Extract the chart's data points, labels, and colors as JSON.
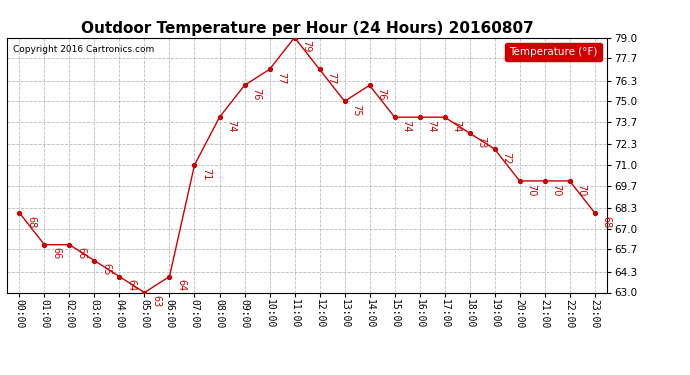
{
  "title": "Outdoor Temperature per Hour (24 Hours) 20160807",
  "copyright": "Copyright 2016 Cartronics.com",
  "legend_label": "Temperature (°F)",
  "hours": [
    "00:00",
    "01:00",
    "02:00",
    "03:00",
    "04:00",
    "05:00",
    "06:00",
    "07:00",
    "08:00",
    "09:00",
    "10:00",
    "11:00",
    "12:00",
    "13:00",
    "14:00",
    "15:00",
    "16:00",
    "17:00",
    "18:00",
    "19:00",
    "20:00",
    "21:00",
    "22:00",
    "23:00"
  ],
  "temperatures": [
    68,
    66,
    66,
    65,
    64,
    63,
    64,
    71,
    74,
    76,
    77,
    79,
    77,
    75,
    76,
    74,
    74,
    74,
    73,
    72,
    70,
    70,
    70,
    68
  ],
  "line_color": "#cc0000",
  "marker_color": "#cc0000",
  "background_color": "#ffffff",
  "grid_color": "#bbbbbb",
  "label_color": "#cc0000",
  "ylim_min": 63.0,
  "ylim_max": 79.0,
  "yticks": [
    63.0,
    64.3,
    65.7,
    67.0,
    68.3,
    69.7,
    71.0,
    72.3,
    73.7,
    75.0,
    76.3,
    77.7,
    79.0
  ],
  "title_fontsize": 11,
  "legend_bg": "#cc0000",
  "legend_text_color": "#ffffff"
}
